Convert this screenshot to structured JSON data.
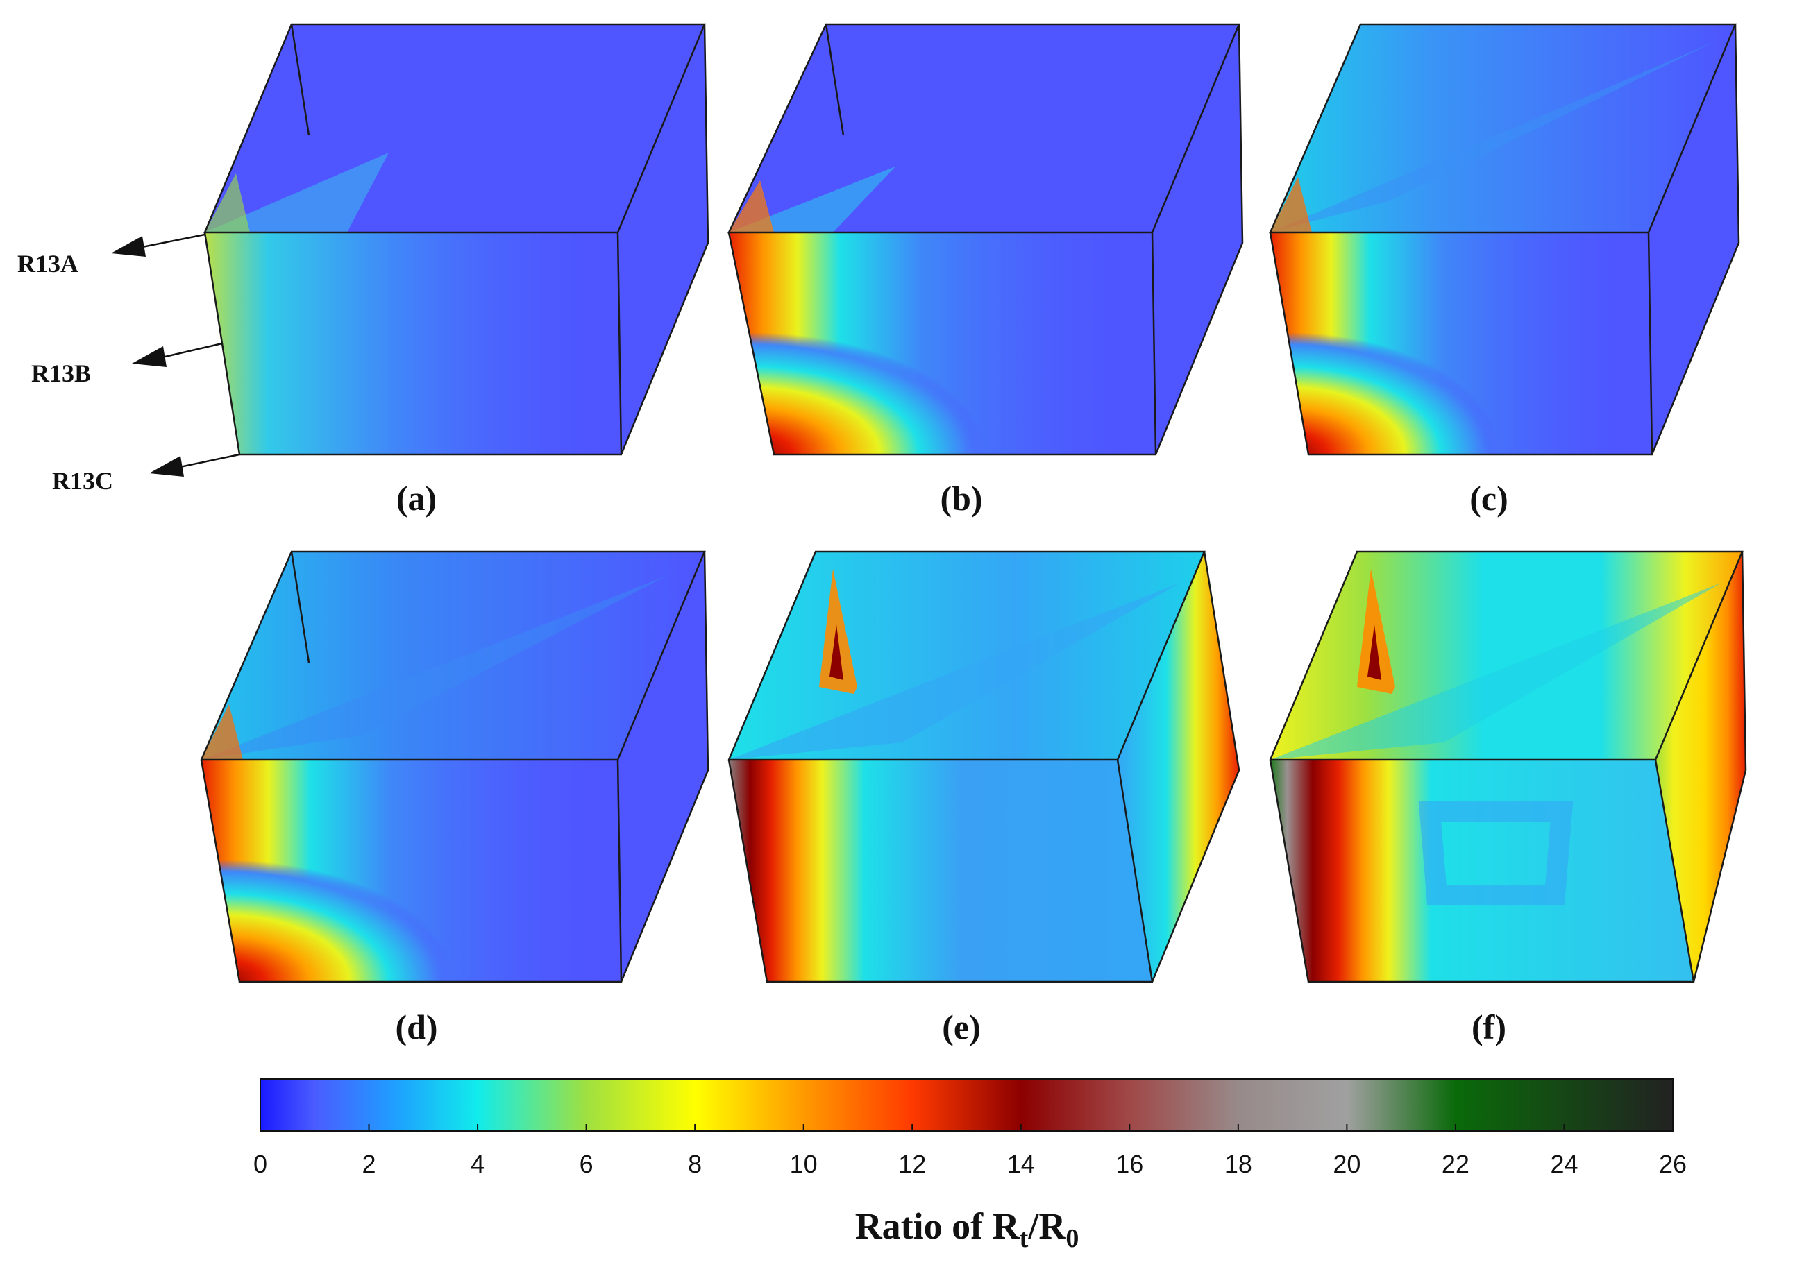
{
  "panels": [
    {
      "id": "a",
      "label": "(a)"
    },
    {
      "id": "b",
      "label": "(b)"
    },
    {
      "id": "c",
      "label": "(c)"
    },
    {
      "id": "d",
      "label": "(d)"
    },
    {
      "id": "e",
      "label": "(e)"
    },
    {
      "id": "f",
      "label": "(f)"
    }
  ],
  "sensors": [
    {
      "id": "R13A",
      "label": "R13A"
    },
    {
      "id": "R13B",
      "label": "R13B"
    },
    {
      "id": "R13C",
      "label": "R13C"
    }
  ],
  "colorbar": {
    "ticks": [
      "0",
      "2",
      "4",
      "6",
      "8",
      "10",
      "12",
      "14",
      "16",
      "18",
      "20",
      "22",
      "24",
      "26"
    ],
    "min": 0,
    "max": 26,
    "title_prefix": "Ratio of R",
    "title_sub1": "t",
    "title_mid": "/R",
    "title_sub2": "0",
    "stops": [
      {
        "v": 0,
        "color": "#1a1aff"
      },
      {
        "v": 1,
        "color": "#4a5cff"
      },
      {
        "v": 2.5,
        "color": "#1ea0ff"
      },
      {
        "v": 4,
        "color": "#11ecec"
      },
      {
        "v": 6,
        "color": "#9fe040"
      },
      {
        "v": 8,
        "color": "#ffff00"
      },
      {
        "v": 10,
        "color": "#ff9a00"
      },
      {
        "v": 12,
        "color": "#ff3a00"
      },
      {
        "v": 14,
        "color": "#8c0000"
      },
      {
        "v": 16,
        "color": "#a04848"
      },
      {
        "v": 18,
        "color": "#988a8a"
      },
      {
        "v": 20,
        "color": "#a0a0a0"
      },
      {
        "v": 22,
        "color": "#0a6a0a"
      },
      {
        "v": 26,
        "color": "#222222"
      }
    ]
  },
  "colors": {
    "base": "#4f55ff",
    "cyan": "#1ecfea",
    "lightblue": "#34a6f5",
    "yellow": "#f3f01c",
    "orange": "#ff8a00",
    "red": "#e81e00",
    "darkred": "#a01000",
    "gray": "#9a8f8f",
    "green": "#1d7a1d",
    "edge": "#1a1a1a"
  }
}
